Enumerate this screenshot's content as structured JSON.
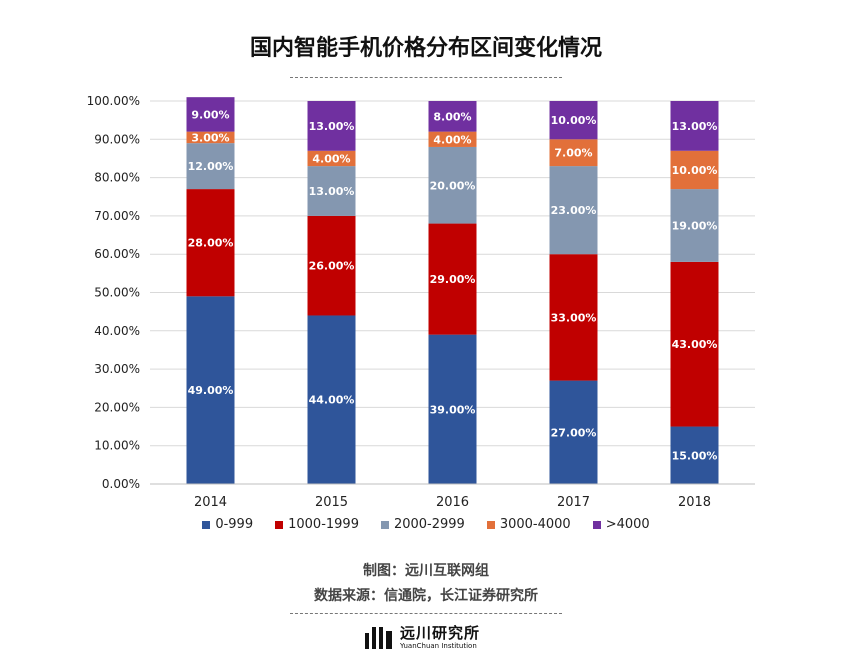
{
  "title": "国内智能手机价格分布区间变化情况",
  "footer": {
    "made_by": "制图：远川互联网组",
    "source": "数据来源：信通院，长江证券研究所"
  },
  "logo": {
    "name_cn": "远川研究所",
    "name_en": "YuanChuan Institution"
  },
  "chart_data": {
    "type": "bar",
    "stacked": true,
    "title": "国内智能手机价格分布区间变化情况",
    "categories": [
      "2014",
      "2015",
      "2016",
      "2017",
      "2018"
    ],
    "ylim": [
      0,
      100
    ],
    "ytick_labels": [
      "0.00%",
      "10.00%",
      "20.00%",
      "30.00%",
      "40.00%",
      "50.00%",
      "60.00%",
      "70.00%",
      "80.00%",
      "90.00%",
      "100.00%"
    ],
    "legend_position": "bottom",
    "series": [
      {
        "name": "0-999",
        "color": "#2f559a",
        "values": [
          49,
          44,
          39,
          27,
          15
        ],
        "labels": [
          "49.00%",
          "44.00%",
          "39.00%",
          "27.00%",
          "15.00%"
        ]
      },
      {
        "name": "1000-1999",
        "color": "#c00000",
        "values": [
          28,
          26,
          29,
          33,
          43
        ],
        "labels": [
          "28.00%",
          "26.00%",
          "29.00%",
          "33.00%",
          "43.00%"
        ]
      },
      {
        "name": "2000-2999",
        "color": "#8497b0",
        "values": [
          12,
          13,
          20,
          23,
          19
        ],
        "labels": [
          "12.00%",
          "13.00%",
          "20.00%",
          "23.00%",
          "19.00%"
        ]
      },
      {
        "name": "3000-4000",
        "color": "#e2703a",
        "values": [
          3,
          4,
          4,
          7,
          10
        ],
        "labels": [
          "3.00%",
          "4.00%",
          "4.00%",
          "7.00%",
          "10.00%"
        ]
      },
      {
        "name": ">4000",
        "color": "#7030a0",
        "values": [
          9,
          13,
          8,
          10,
          13
        ],
        "labels": [
          "9.00%",
          "13.00%",
          "8.00%",
          "10.00%",
          "13.00%"
        ]
      }
    ]
  }
}
